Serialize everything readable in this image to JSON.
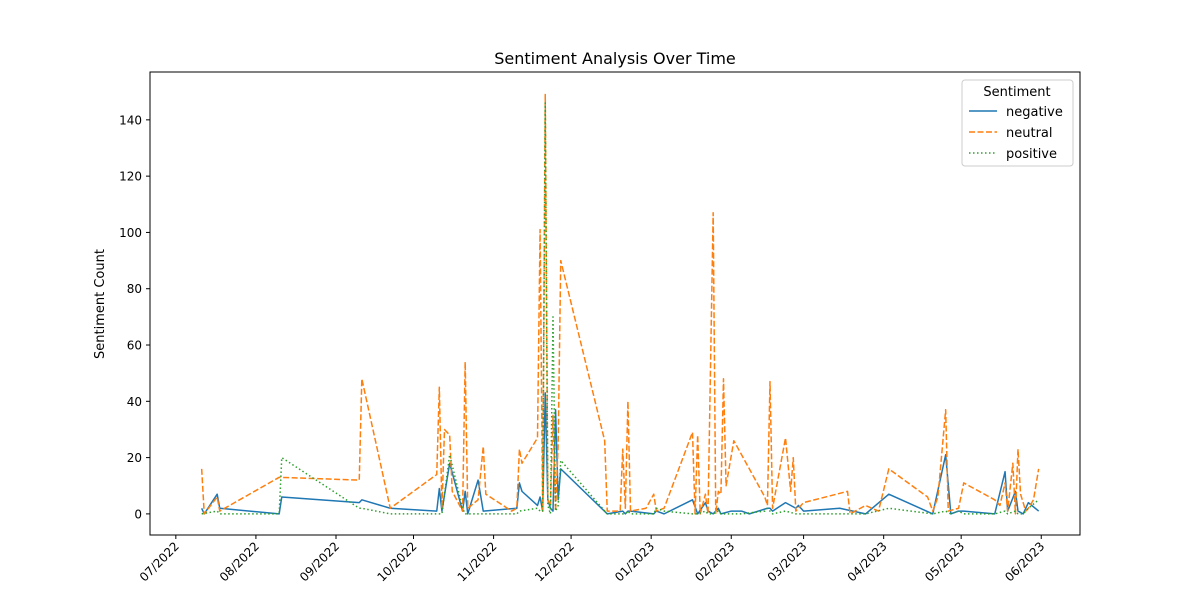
{
  "chart_data": {
    "type": "line",
    "title": "Sentiment Analysis Over Time",
    "xlabel": "",
    "ylabel": "Sentiment Count",
    "xlim": [
      "2022-06-21",
      "2023-06-16"
    ],
    "ylim": [
      -7.5,
      157
    ],
    "y_ticks": [
      0,
      20,
      40,
      60,
      80,
      100,
      120,
      140
    ],
    "x_ticks": [
      {
        "date": "2022-07-01",
        "label": "07/2022"
      },
      {
        "date": "2022-08-01",
        "label": "08/2022"
      },
      {
        "date": "2022-09-01",
        "label": "09/2022"
      },
      {
        "date": "2022-10-01",
        "label": "10/2022"
      },
      {
        "date": "2022-11-01",
        "label": "11/2022"
      },
      {
        "date": "2022-12-01",
        "label": "12/2022"
      },
      {
        "date": "2023-01-01",
        "label": "01/2023"
      },
      {
        "date": "2023-02-01",
        "label": "02/2023"
      },
      {
        "date": "2023-03-01",
        "label": "03/2023"
      },
      {
        "date": "2023-04-01",
        "label": "04/2023"
      },
      {
        "date": "2023-05-01",
        "label": "05/2023"
      },
      {
        "date": "2023-06-01",
        "label": "06/2023"
      }
    ],
    "grid": false,
    "legend": {
      "title": "Sentiment",
      "position": "top-right"
    },
    "series": [
      {
        "name": "negative",
        "color": "#1f77b4",
        "dash": "solid",
        "points": [
          [
            "2022-07-11",
            2
          ],
          [
            "2022-07-12",
            0
          ],
          [
            "2022-07-17",
            7
          ],
          [
            "2022-07-18",
            2
          ],
          [
            "2022-08-10",
            0
          ],
          [
            "2022-08-11",
            6
          ],
          [
            "2022-09-10",
            4
          ],
          [
            "2022-09-11",
            5
          ],
          [
            "2022-09-22",
            2
          ],
          [
            "2022-10-10",
            1
          ],
          [
            "2022-10-11",
            9
          ],
          [
            "2022-10-12",
            1
          ],
          [
            "2022-10-15",
            18
          ],
          [
            "2022-10-20",
            1
          ],
          [
            "2022-10-21",
            8
          ],
          [
            "2022-10-22",
            0
          ],
          [
            "2022-10-26",
            12
          ],
          [
            "2022-10-28",
            1
          ],
          [
            "2022-11-10",
            2
          ],
          [
            "2022-11-11",
            11
          ],
          [
            "2022-11-12",
            8
          ],
          [
            "2022-11-18",
            3
          ],
          [
            "2022-11-19",
            6
          ],
          [
            "2022-11-20",
            1
          ],
          [
            "2022-11-21",
            43
          ],
          [
            "2022-11-22",
            5
          ],
          [
            "2022-11-23",
            2
          ],
          [
            "2022-11-24",
            1
          ],
          [
            "2022-11-25",
            37
          ],
          [
            "2022-11-26",
            5
          ],
          [
            "2022-11-27",
            16
          ],
          [
            "2022-12-15",
            0
          ],
          [
            "2022-12-21",
            1
          ],
          [
            "2022-12-22",
            0
          ],
          [
            "2022-12-23",
            1
          ],
          [
            "2022-12-24",
            1
          ],
          [
            "2023-01-02",
            0
          ],
          [
            "2023-01-03",
            1
          ],
          [
            "2023-01-06",
            0
          ],
          [
            "2023-01-17",
            5
          ],
          [
            "2023-01-19",
            0
          ],
          [
            "2023-01-22",
            4
          ],
          [
            "2023-01-23",
            1
          ],
          [
            "2023-01-25",
            0
          ],
          [
            "2023-01-27",
            2
          ],
          [
            "2023-01-28",
            0
          ],
          [
            "2023-02-01",
            1
          ],
          [
            "2023-02-05",
            1
          ],
          [
            "2023-02-08",
            0
          ],
          [
            "2023-02-15",
            2
          ],
          [
            "2023-02-16",
            2
          ],
          [
            "2023-02-17",
            1
          ],
          [
            "2023-02-22",
            4
          ],
          [
            "2023-02-26",
            2
          ],
          [
            "2023-02-27",
            3
          ],
          [
            "2023-03-01",
            1
          ],
          [
            "2023-03-15",
            2
          ],
          [
            "2023-03-25",
            0
          ],
          [
            "2023-04-03",
            7
          ],
          [
            "2023-04-20",
            0
          ],
          [
            "2023-04-25",
            21
          ],
          [
            "2023-04-27",
            0
          ],
          [
            "2023-04-30",
            1
          ],
          [
            "2023-05-02",
            1
          ],
          [
            "2023-05-14",
            0
          ],
          [
            "2023-05-18",
            15
          ],
          [
            "2023-05-19",
            1
          ],
          [
            "2023-05-22",
            8
          ],
          [
            "2023-05-23",
            1
          ],
          [
            "2023-05-25",
            0
          ],
          [
            "2023-05-27",
            4
          ],
          [
            "2023-05-31",
            1
          ]
        ]
      },
      {
        "name": "neutral",
        "color": "#ff7f0e",
        "dash": "dashed",
        "points": [
          [
            "2022-07-11",
            16
          ],
          [
            "2022-07-12",
            0
          ],
          [
            "2022-07-17",
            6
          ],
          [
            "2022-07-18",
            1
          ],
          [
            "2022-08-10",
            13
          ],
          [
            "2022-09-10",
            12
          ],
          [
            "2022-09-11",
            48
          ],
          [
            "2022-09-22",
            2
          ],
          [
            "2022-10-10",
            14
          ],
          [
            "2022-10-11",
            45
          ],
          [
            "2022-10-12",
            2
          ],
          [
            "2022-10-13",
            30
          ],
          [
            "2022-10-15",
            28
          ],
          [
            "2022-10-16",
            8
          ],
          [
            "2022-10-20",
            1
          ],
          [
            "2022-10-21",
            54
          ],
          [
            "2022-10-22",
            2
          ],
          [
            "2022-10-26",
            5
          ],
          [
            "2022-10-28",
            24
          ],
          [
            "2022-10-29",
            7
          ],
          [
            "2022-11-08",
            1
          ],
          [
            "2022-11-10",
            2
          ],
          [
            "2022-11-11",
            23
          ],
          [
            "2022-11-12",
            18
          ],
          [
            "2022-11-18",
            27
          ],
          [
            "2022-11-19",
            101
          ],
          [
            "2022-11-20",
            1
          ],
          [
            "2022-11-21",
            149
          ],
          [
            "2022-11-22",
            5
          ],
          [
            "2022-11-23",
            3
          ],
          [
            "2022-11-24",
            35
          ],
          [
            "2022-11-25",
            1
          ],
          [
            "2022-11-26",
            25
          ],
          [
            "2022-11-27",
            90
          ],
          [
            "2022-12-14",
            26
          ],
          [
            "2022-12-15",
            1
          ],
          [
            "2022-12-20",
            1
          ],
          [
            "2022-12-21",
            23
          ],
          [
            "2022-12-22",
            2
          ],
          [
            "2022-12-23",
            40
          ],
          [
            "2022-12-24",
            1
          ],
          [
            "2022-12-30",
            2
          ],
          [
            "2023-01-02",
            7
          ],
          [
            "2023-01-03",
            1
          ],
          [
            "2023-01-06",
            2
          ],
          [
            "2023-01-17",
            29
          ],
          [
            "2023-01-18",
            0
          ],
          [
            "2023-01-19",
            28
          ],
          [
            "2023-01-20",
            0
          ],
          [
            "2023-01-22",
            7
          ],
          [
            "2023-01-23",
            0
          ],
          [
            "2023-01-25",
            107
          ],
          [
            "2023-01-26",
            0
          ],
          [
            "2023-01-27",
            8
          ],
          [
            "2023-01-28",
            7
          ],
          [
            "2023-01-29",
            48
          ],
          [
            "2023-01-30",
            10
          ],
          [
            "2023-02-02",
            26
          ],
          [
            "2023-02-14",
            6
          ],
          [
            "2023-02-15",
            3
          ],
          [
            "2023-02-16",
            47
          ],
          [
            "2023-02-17",
            2
          ],
          [
            "2023-02-22",
            27
          ],
          [
            "2023-02-24",
            8
          ],
          [
            "2023-02-25",
            20
          ],
          [
            "2023-02-26",
            1
          ],
          [
            "2023-02-27",
            2
          ],
          [
            "2023-03-01",
            4
          ],
          [
            "2023-03-18",
            8
          ],
          [
            "2023-03-19",
            0
          ],
          [
            "2023-03-25",
            3
          ],
          [
            "2023-03-30",
            1
          ],
          [
            "2023-04-03",
            16
          ],
          [
            "2023-04-18",
            6
          ],
          [
            "2023-04-20",
            1
          ],
          [
            "2023-04-22",
            6
          ],
          [
            "2023-04-25",
            37
          ],
          [
            "2023-04-26",
            1
          ],
          [
            "2023-04-30",
            2
          ],
          [
            "2023-05-02",
            11
          ],
          [
            "2023-05-14",
            5
          ],
          [
            "2023-05-16",
            3
          ],
          [
            "2023-05-18",
            11
          ],
          [
            "2023-05-19",
            1
          ],
          [
            "2023-05-21",
            18
          ],
          [
            "2023-05-22",
            0
          ],
          [
            "2023-05-23",
            23
          ],
          [
            "2023-05-24",
            7
          ],
          [
            "2023-05-26",
            1
          ],
          [
            "2023-05-27",
            2
          ],
          [
            "2023-05-29",
            5
          ],
          [
            "2023-05-31",
            16
          ]
        ]
      },
      {
        "name": "positive",
        "color": "#2ca02c",
        "dash": "dotted",
        "points": [
          [
            "2022-07-11",
            0
          ],
          [
            "2022-07-17",
            1
          ],
          [
            "2022-07-18",
            0
          ],
          [
            "2022-08-10",
            0
          ],
          [
            "2022-08-11",
            20
          ],
          [
            "2022-09-10",
            2
          ],
          [
            "2022-09-11",
            2
          ],
          [
            "2022-09-22",
            0
          ],
          [
            "2022-10-10",
            0
          ],
          [
            "2022-10-11",
            0
          ],
          [
            "2022-10-12",
            0
          ],
          [
            "2022-10-15",
            21
          ],
          [
            "2022-10-20",
            2
          ],
          [
            "2022-10-21",
            0
          ],
          [
            "2022-10-22",
            0
          ],
          [
            "2022-10-28",
            0
          ],
          [
            "2022-11-10",
            0
          ],
          [
            "2022-11-11",
            1
          ],
          [
            "2022-11-18",
            2
          ],
          [
            "2022-11-19",
            1
          ],
          [
            "2022-11-20",
            1
          ],
          [
            "2022-11-21",
            146
          ],
          [
            "2022-11-22",
            3
          ],
          [
            "2022-11-23",
            0
          ],
          [
            "2022-11-24",
            70
          ],
          [
            "2022-11-25",
            1
          ],
          [
            "2022-11-26",
            3
          ],
          [
            "2022-11-27",
            19
          ],
          [
            "2022-12-15",
            0
          ],
          [
            "2022-12-21",
            0
          ],
          [
            "2022-12-22",
            0
          ],
          [
            "2022-12-23",
            1
          ],
          [
            "2022-12-24",
            0
          ],
          [
            "2023-01-02",
            0
          ],
          [
            "2023-01-03",
            2
          ],
          [
            "2023-01-06",
            1
          ],
          [
            "2023-01-17",
            0
          ],
          [
            "2023-01-19",
            0
          ],
          [
            "2023-01-22",
            1
          ],
          [
            "2023-01-23",
            0
          ],
          [
            "2023-01-25",
            0
          ],
          [
            "2023-01-27",
            1
          ],
          [
            "2023-01-28",
            0
          ],
          [
            "2023-02-01",
            0
          ],
          [
            "2023-02-05",
            0
          ],
          [
            "2023-02-14",
            1
          ],
          [
            "2023-02-15",
            2
          ],
          [
            "2023-02-16",
            1
          ],
          [
            "2023-02-17",
            0
          ],
          [
            "2023-02-22",
            1
          ],
          [
            "2023-02-26",
            0
          ],
          [
            "2023-02-27",
            0
          ],
          [
            "2023-03-01",
            0
          ],
          [
            "2023-03-15",
            0
          ],
          [
            "2023-03-25",
            0
          ],
          [
            "2023-04-03",
            2
          ],
          [
            "2023-04-20",
            0
          ],
          [
            "2023-04-25",
            1
          ],
          [
            "2023-04-27",
            0
          ],
          [
            "2023-04-30",
            1
          ],
          [
            "2023-05-02",
            0
          ],
          [
            "2023-05-14",
            0
          ],
          [
            "2023-05-18",
            1
          ],
          [
            "2023-05-19",
            0
          ],
          [
            "2023-05-22",
            1
          ],
          [
            "2023-05-23",
            0
          ],
          [
            "2023-05-25",
            0
          ],
          [
            "2023-05-27",
            2
          ],
          [
            "2023-05-31",
            5
          ]
        ]
      }
    ]
  }
}
